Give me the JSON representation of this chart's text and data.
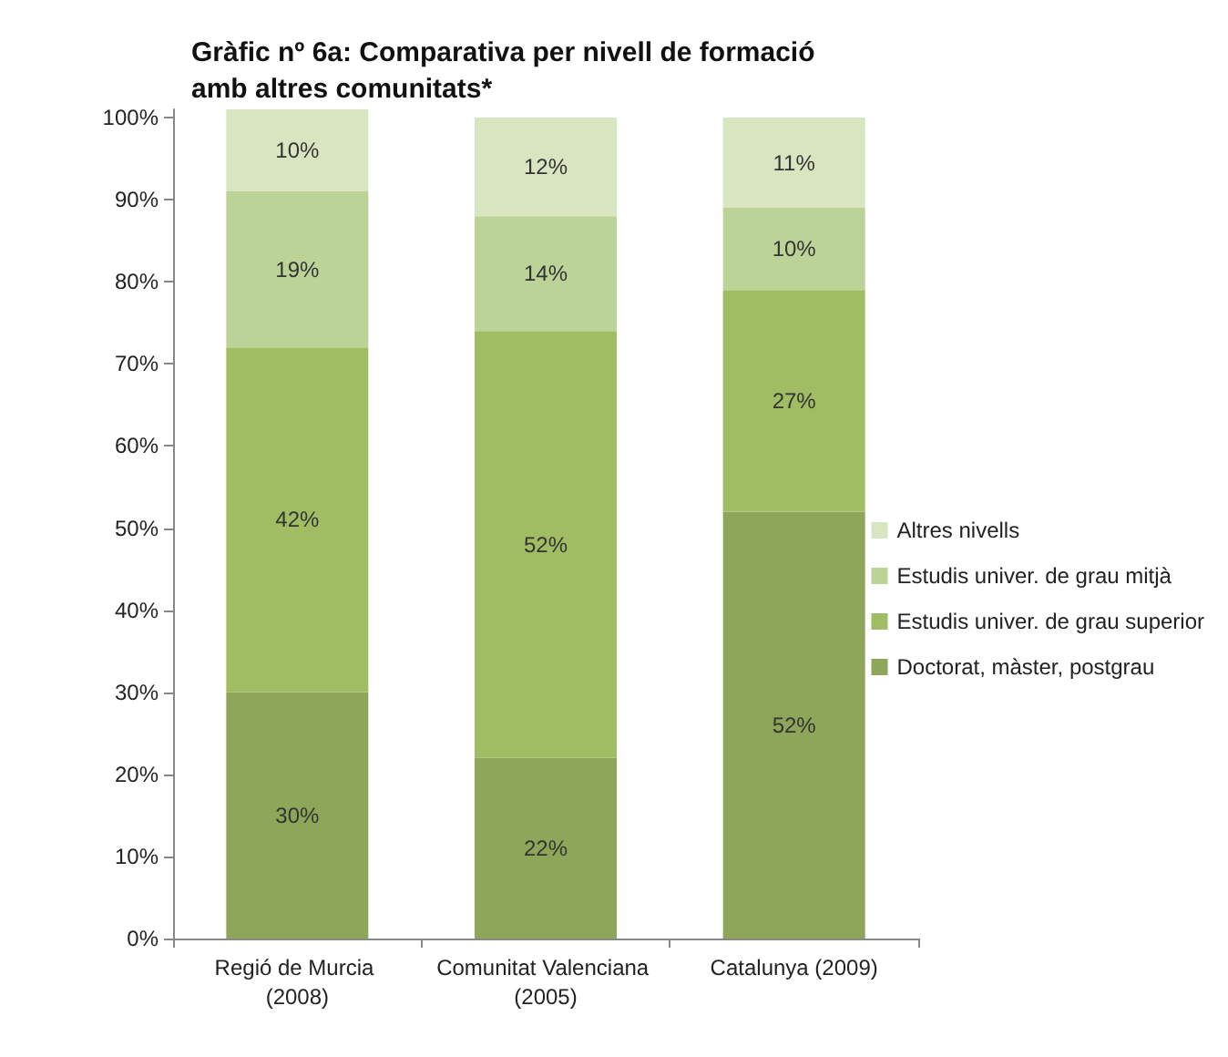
{
  "chart_data": {
    "type": "bar",
    "title": "Gràfic nº 6a: Comparativa per nivell de formació amb altres comunitats*",
    "stacked": true,
    "categories": [
      "Regió de Murcia (2008)",
      "Comunitat Valenciana (2005)",
      "Catalunya (2009)"
    ],
    "series": [
      {
        "name": "Doctorat, màster, postgrau",
        "color": "#8ea65a",
        "values": [
          30,
          22,
          52
        ],
        "value_labels": [
          "30%",
          "22%",
          "52%"
        ]
      },
      {
        "name": "Estudis univer. de grau superior",
        "color": "#a0bd64",
        "values": [
          42,
          52,
          27
        ],
        "value_labels": [
          "42%",
          "52%",
          "27%"
        ]
      },
      {
        "name": "Estudis univer. de grau mitjà",
        "color": "#bcd398",
        "values": [
          19,
          14,
          10
        ],
        "value_labels": [
          "19%",
          "14%",
          "10%"
        ]
      },
      {
        "name": "Altres nivells",
        "color": "#d8e5c0",
        "values": [
          10,
          12,
          11
        ],
        "value_labels": [
          "10%",
          "12%",
          "11%"
        ]
      }
    ],
    "ylim": [
      0,
      101
    ],
    "yticks": [
      {
        "value": 0,
        "label": "0%"
      },
      {
        "value": 10,
        "label": "10%"
      },
      {
        "value": 20,
        "label": "20%"
      },
      {
        "value": 30,
        "label": "30%"
      },
      {
        "value": 40,
        "label": "40%"
      },
      {
        "value": 50,
        "label": "50%"
      },
      {
        "value": 60,
        "label": "60%"
      },
      {
        "value": 70,
        "label": "70%"
      },
      {
        "value": 80,
        "label": "80%"
      },
      {
        "value": 90,
        "label": "90%"
      },
      {
        "value": 100,
        "label": "100%"
      }
    ],
    "grid": false,
    "legend": "right"
  }
}
